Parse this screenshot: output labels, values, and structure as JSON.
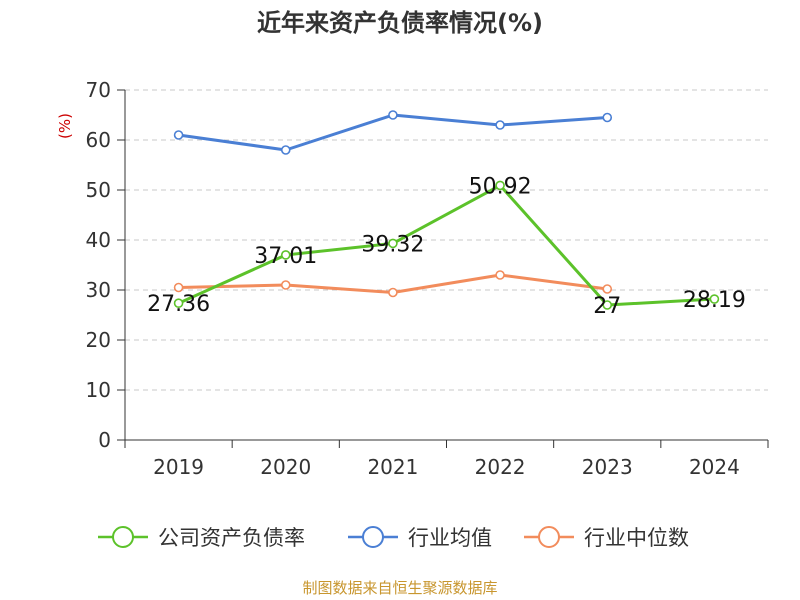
{
  "chart_data": {
    "type": "line",
    "title": "近年来资产负债率情况(%)",
    "xlabel": "",
    "ylabel": "(%)",
    "ylim": [
      0,
      70
    ],
    "yticks": [
      0,
      10,
      20,
      30,
      40,
      50,
      60,
      70
    ],
    "categories": [
      "2019",
      "2020",
      "2021",
      "2022",
      "2023",
      "2024"
    ],
    "grid": true,
    "legend_position": "bottom",
    "series": [
      {
        "name": "公司资产负债率",
        "color": "#5cc22a",
        "values": [
          27.36,
          37.01,
          39.32,
          50.92,
          27,
          28.19
        ],
        "labels": [
          "27.36",
          "37.01",
          "39.32",
          "50.92",
          "27",
          "28.19"
        ]
      },
      {
        "name": "行业均值",
        "color": "#4a7fd4",
        "values": [
          61,
          58,
          65,
          63,
          64.5,
          null
        ]
      },
      {
        "name": "行业中位数",
        "color": "#f28c5c",
        "values": [
          30.5,
          31,
          29.5,
          33,
          30.2,
          null
        ]
      }
    ]
  },
  "source": "制图数据来自恒生聚源数据库"
}
